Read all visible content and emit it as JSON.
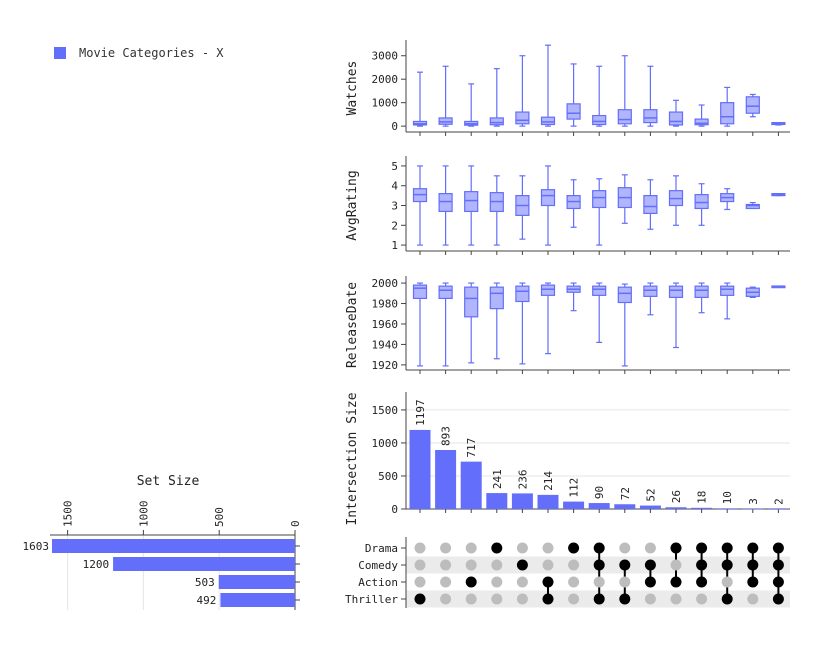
{
  "legend": {
    "label": "Movie Categories - X",
    "color": "#636efa"
  },
  "colors": {
    "bar": "#636efa",
    "box_fill": "#b1b6fc",
    "dot_on": "#000000",
    "dot_off": "#bdbdbd",
    "stripe": "#ebebeb",
    "grid": "#e6e6e6"
  },
  "chart_data": {
    "type": "upset",
    "sets": [
      "Drama",
      "Comedy",
      "Action",
      "Thriller"
    ],
    "set_size": {
      "title": "Set Size",
      "values": [
        1603,
        1200,
        503,
        492
      ],
      "ticks": [
        1500,
        1000,
        500,
        0
      ],
      "xlim": [
        0,
        1700
      ]
    },
    "intersection_size": {
      "ylabel": "Intersection Size",
      "values": [
        1197,
        893,
        717,
        241,
        236,
        214,
        112,
        90,
        72,
        52,
        26,
        18,
        10,
        3,
        2
      ],
      "ticks": [
        0,
        500,
        1000,
        1500
      ],
      "ylim": [
        0,
        1650
      ]
    },
    "membership": [
      [
        0,
        0,
        0,
        1
      ],
      [
        0,
        0,
        0,
        0
      ],
      [
        0,
        0,
        1,
        0
      ],
      [
        1,
        0,
        0,
        0
      ],
      [
        0,
        1,
        0,
        0
      ],
      [
        0,
        0,
        1,
        1
      ],
      [
        1,
        0,
        0,
        0
      ],
      [
        1,
        1,
        0,
        1
      ],
      [
        0,
        1,
        0,
        1
      ],
      [
        0,
        1,
        1,
        0
      ],
      [
        1,
        0,
        1,
        0
      ],
      [
        1,
        1,
        1,
        0
      ],
      [
        1,
        1,
        0,
        1
      ],
      [
        1,
        1,
        1,
        0
      ],
      [
        1,
        1,
        1,
        1
      ]
    ],
    "boxplots": [
      {
        "ylabel": "Watches",
        "ticks": [
          0,
          1000,
          2000,
          3000
        ],
        "ylim": [
          -250,
          3500
        ],
        "stats": [
          [
            0,
            50,
            100,
            200,
            2300
          ],
          [
            0,
            80,
            180,
            350,
            2550
          ],
          [
            0,
            40,
            100,
            200,
            1800
          ],
          [
            0,
            60,
            150,
            350,
            2450
          ],
          [
            0,
            100,
            250,
            600,
            3000
          ],
          [
            0,
            70,
            180,
            380,
            3450
          ],
          [
            0,
            300,
            550,
            950,
            2650
          ],
          [
            0,
            70,
            200,
            450,
            2550
          ],
          [
            0,
            100,
            280,
            700,
            3000
          ],
          [
            0,
            150,
            350,
            700,
            2550
          ],
          [
            0,
            50,
            200,
            600,
            1100
          ],
          [
            0,
            60,
            120,
            300,
            900
          ],
          [
            0,
            100,
            400,
            1000,
            1650
          ],
          [
            400,
            550,
            850,
            1250,
            1350
          ],
          [
            50,
            70,
            100,
            150,
            150
          ]
        ]
      },
      {
        "ylabel": "AvgRating",
        "ticks": [
          1,
          2,
          3,
          4,
          5
        ],
        "ylim": [
          0.7,
          5.3
        ],
        "stats": [
          [
            1.0,
            3.2,
            3.55,
            3.85,
            5.0
          ],
          [
            1.0,
            2.7,
            3.2,
            3.6,
            5.0
          ],
          [
            1.0,
            2.7,
            3.25,
            3.7,
            5.0
          ],
          [
            1.0,
            2.7,
            3.2,
            3.65,
            4.5
          ],
          [
            1.3,
            2.5,
            3.0,
            3.5,
            4.5
          ],
          [
            1.0,
            3.0,
            3.5,
            3.8,
            5.0
          ],
          [
            1.9,
            2.85,
            3.2,
            3.5,
            4.3
          ],
          [
            1.0,
            2.9,
            3.4,
            3.75,
            4.35
          ],
          [
            2.1,
            2.9,
            3.4,
            3.9,
            4.55
          ],
          [
            1.8,
            2.6,
            2.95,
            3.5,
            4.3
          ],
          [
            2.0,
            3.0,
            3.35,
            3.75,
            4.5
          ],
          [
            2.0,
            2.85,
            3.15,
            3.55,
            4.1
          ],
          [
            2.8,
            3.2,
            3.4,
            3.6,
            3.85
          ],
          [
            2.85,
            2.85,
            3.0,
            3.05,
            3.15
          ],
          [
            3.5,
            3.5,
            3.55,
            3.6,
            3.6
          ]
        ]
      },
      {
        "ylabel": "ReleaseDate",
        "ticks": [
          1920,
          1940,
          1960,
          1980,
          2000
        ],
        "ylim": [
          1915,
          2003
        ],
        "stats": [
          [
            1919,
            1985,
            1995,
            1998,
            2000
          ],
          [
            1919,
            1985,
            1993,
            1997,
            2000
          ],
          [
            1922,
            1967,
            1985,
            1996,
            2000
          ],
          [
            1926,
            1975,
            1990,
            1996,
            2000
          ],
          [
            1921,
            1982,
            1992,
            1997,
            2000
          ],
          [
            1931,
            1988,
            1994,
            1998,
            2000
          ],
          [
            1973,
            1991,
            1994,
            1997,
            2000
          ],
          [
            1942,
            1988,
            1994,
            1997,
            2000
          ],
          [
            1919,
            1981,
            1990,
            1996,
            1999
          ],
          [
            1969,
            1987,
            1993,
            1997,
            2000
          ],
          [
            1937,
            1986,
            1993,
            1997,
            2000
          ],
          [
            1971,
            1986,
            1993,
            1997,
            2000
          ],
          [
            1965,
            1988,
            1994,
            1997,
            2000
          ],
          [
            1986,
            1987,
            1991,
            1995,
            1996
          ],
          [
            1996,
            1996,
            1997,
            1997,
            1997
          ]
        ]
      }
    ]
  }
}
